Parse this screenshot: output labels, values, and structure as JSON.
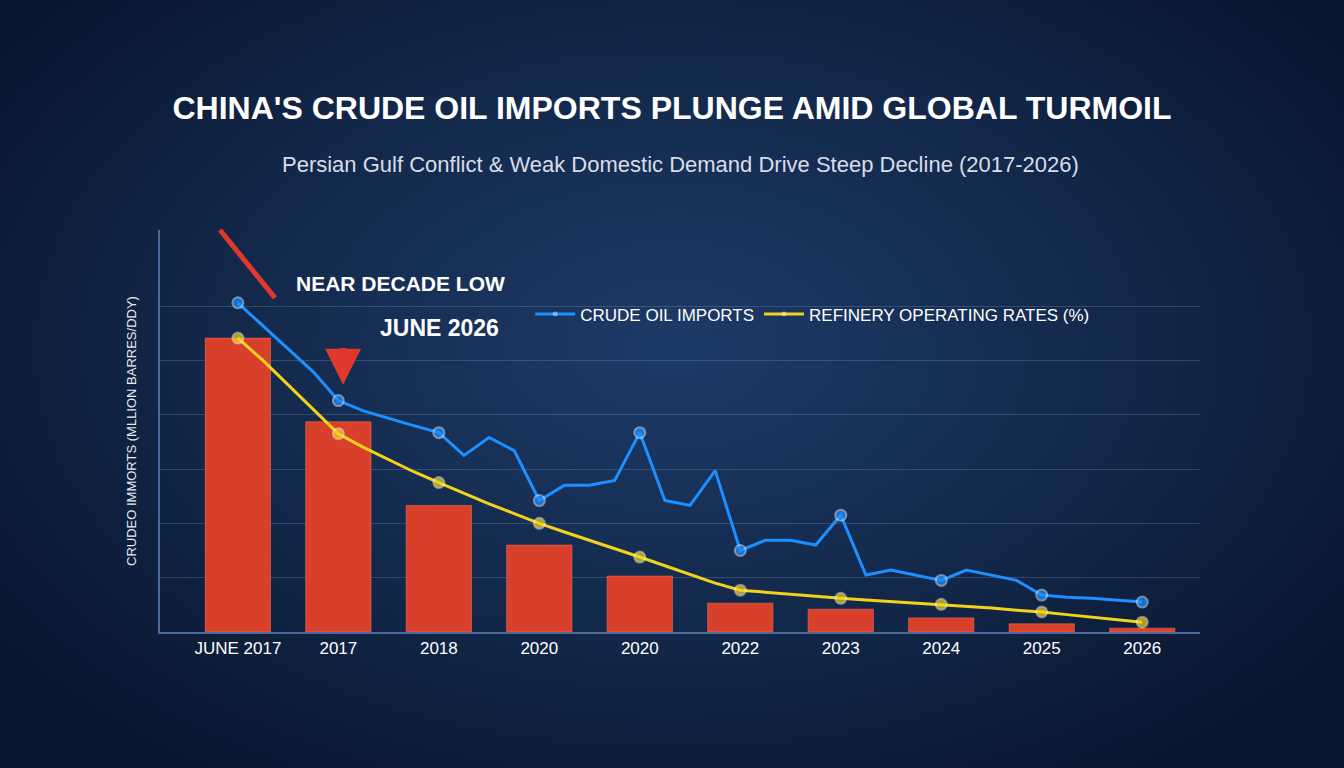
{
  "chart_data": {
    "type": "bar",
    "title": "CHINA'S CRUDE OIL IMPORTS PLUNGE AMID GLOBAL TURMOIL",
    "subtitle": "Persian Gulf Conflict & Weak Domestic Demand Drive Steep Decline (2017-2026)",
    "y_label": "CRUDEO IMMORTS (MLLION BARRES/DDY)",
    "annotations": [
      "NEAR DECADE LOW",
      "JUNE 2026"
    ],
    "categories": [
      "JUNE 2017",
      null,
      null,
      null,
      "2017",
      null,
      null,
      null,
      "2018",
      null,
      null,
      null,
      "2020",
      null,
      null,
      null,
      "2020",
      null,
      null,
      null,
      "2022",
      null,
      null,
      null,
      "2023",
      null,
      null,
      null,
      "2024",
      null,
      null,
      null,
      "2025",
      null,
      null,
      null,
      "2026"
    ],
    "series": [
      {
        "type": "bar",
        "color": "#d8402c",
        "values": [
          5.41,
          null,
          null,
          null,
          3.87,
          null,
          null,
          null,
          2.33,
          null,
          null,
          null,
          1.6,
          null,
          null,
          null,
          1.03,
          null,
          null,
          null,
          0.53,
          null,
          null,
          null,
          0.42,
          null,
          null,
          null,
          0.26,
          null,
          null,
          null,
          0.15,
          null,
          null,
          null,
          0.07
        ]
      },
      {
        "name": "CRUDE OIL IMPORTS",
        "type": "line",
        "color": "#1e8fff",
        "marker": "circle",
        "values": [
          6.06,
          5.63,
          5.21,
          4.79,
          4.26,
          4.07,
          3.93,
          3.8,
          3.67,
          3.25,
          3.58,
          3.34,
          2.42,
          2.7,
          2.7,
          2.79,
          3.67,
          2.42,
          2.33,
          2.97,
          1.5,
          1.69,
          1.69,
          1.6,
          2.15,
          1.05,
          1.14,
          1.05,
          0.95,
          1.14,
          1.05,
          0.95,
          0.68,
          0.64,
          0.62,
          0.59,
          0.55
        ]
      },
      {
        "name": "REFINERY OPERATING RATES (%)",
        "type": "line",
        "color": "#f2d31b",
        "marker": "circle",
        "values": [
          5.41,
          5.0,
          4.55,
          4.1,
          3.65,
          3.4,
          3.17,
          2.95,
          2.75,
          2.55,
          2.36,
          2.18,
          2.0,
          1.84,
          1.69,
          1.53,
          1.38,
          1.22,
          1.06,
          0.9,
          0.77,
          0.73,
          0.69,
          0.65,
          0.62,
          0.59,
          0.56,
          0.53,
          0.51,
          0.47,
          0.44,
          0.4,
          0.37,
          0.32,
          0.27,
          0.22,
          0.18
        ]
      }
    ],
    "ylim": [
      0,
      7.4
    ],
    "yticks": [
      0,
      1,
      2,
      3,
      4,
      5,
      6
    ],
    "grid": true,
    "legend": "top",
    "tick_labels": "x"
  }
}
